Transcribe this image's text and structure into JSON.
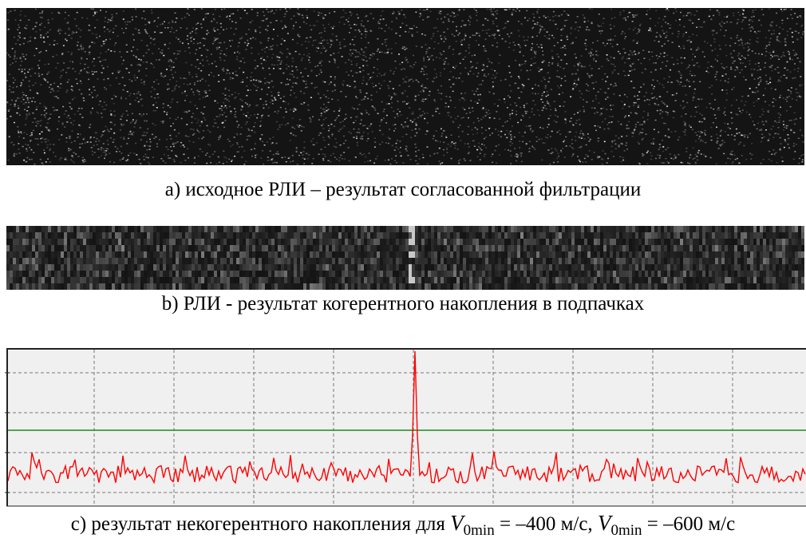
{
  "caption_a": "а) исходное РЛИ – результат согласованной фильтрации",
  "caption_b": "b) РЛИ - результат когерентного накопления в подпачках",
  "caption_c": {
    "prefix": "с) результат некогерентного накопления для ",
    "symbol_1": "V",
    "sub_1": "0min",
    "rest_1": " = –400 м/с, ",
    "symbol_2": "V",
    "sub_2": "0min",
    "rest_2": " = –600 м/с"
  }
}
